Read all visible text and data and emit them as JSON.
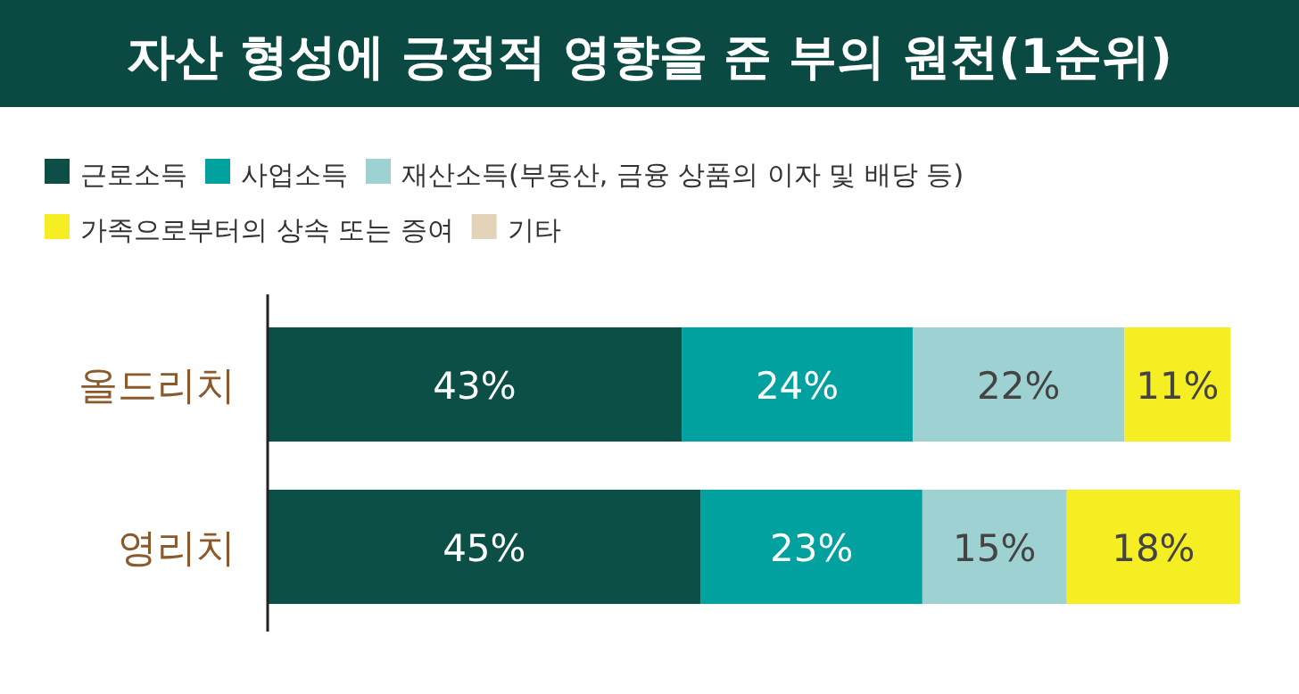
{
  "chart_data": {
    "type": "bar",
    "orientation": "horizontal",
    "stacked": true,
    "title": "자산 형성에 긍정적 영향을 준 부의 원천(1순위)",
    "categories": [
      "올드리치",
      "영리치"
    ],
    "legend": "top left",
    "series": [
      {
        "name": "근로소득",
        "color": "#0b4f47",
        "values": [
          43,
          45
        ],
        "value_labels": [
          "43%",
          "45%"
        ]
      },
      {
        "name": "사업소득",
        "color": "#00a19e",
        "values": [
          24,
          23
        ],
        "value_labels": [
          "24%",
          "23%"
        ]
      },
      {
        "name": "재산소득(부동산, 금융 상품의 이자 및 배당 등)",
        "color": "#9ed1d1",
        "values": [
          22,
          15
        ],
        "value_labels": [
          "22%",
          "15%"
        ]
      },
      {
        "name": "가족으로부터의 상속 또는 증여",
        "color": "#f5ee22",
        "values": [
          11,
          18
        ],
        "value_labels": [
          "11%",
          "18%"
        ]
      },
      {
        "name": "기타",
        "color": "#e3d3b8",
        "values": [
          null,
          null
        ]
      }
    ]
  }
}
